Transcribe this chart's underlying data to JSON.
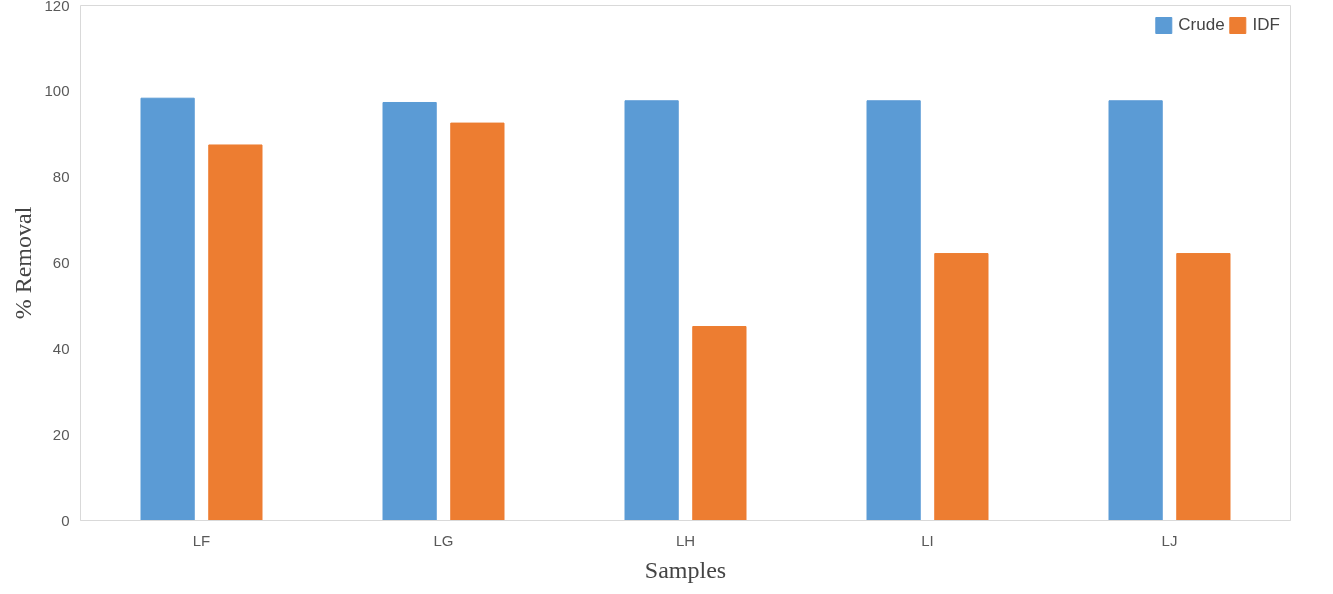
{
  "chart_data": {
    "type": "bar",
    "xlabel": "Samples",
    "ylabel": "% Removal",
    "categories": [
      "LF",
      "LG",
      "LH",
      "LI",
      "LJ"
    ],
    "series": [
      {
        "name": "Crude",
        "color": "#5b9bd5",
        "values": [
          98.4,
          97.4,
          97.8,
          97.8,
          97.8
        ]
      },
      {
        "name": "IDF",
        "color": "#ed7d31",
        "values": [
          87.5,
          92.6,
          45.2,
          62.2,
          62.2
        ]
      }
    ],
    "ylim": [
      0,
      120
    ],
    "yticks": [
      0,
      20,
      40,
      60,
      80,
      100,
      120
    ],
    "grid": false,
    "legend": "top right"
  }
}
